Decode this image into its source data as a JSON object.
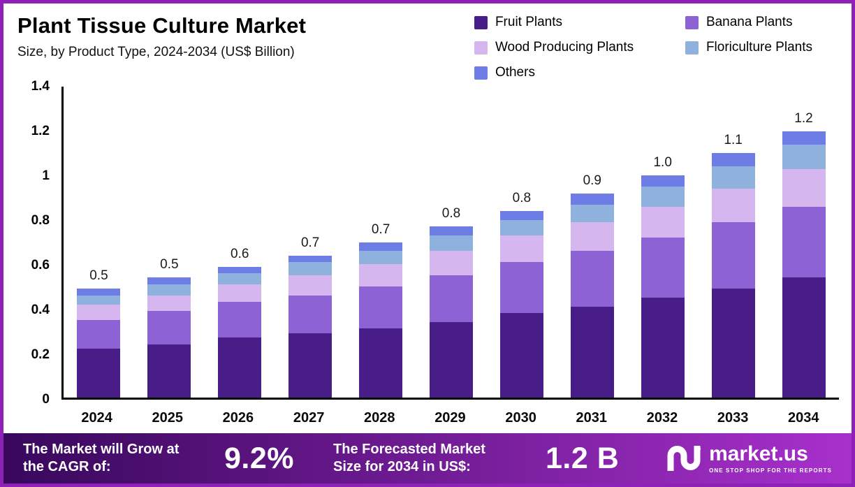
{
  "title": "Plant Tissue Culture Market",
  "subtitle": "Size, by Product Type, 2024-2034 (US$ Billion)",
  "colors": {
    "frame_border": "#8e22b8",
    "axis": "#000000",
    "footer_gradient_start": "#38085c",
    "footer_gradient_end": "#a830cc"
  },
  "chart_data": {
    "type": "bar",
    "stacked": true,
    "title": "Plant Tissue Culture Market",
    "subtitle": "Size, by Product Type, 2024-2034 (US$ Billion)",
    "xlabel": "",
    "ylabel": "",
    "grid": false,
    "legend_position": "top-right",
    "ylim": [
      0,
      1.4
    ],
    "y_ticks": [
      "1.4",
      "1.2",
      "1",
      "0.8",
      "0.6",
      "0.4",
      "0.2",
      "0"
    ],
    "categories": [
      "2024",
      "2025",
      "2026",
      "2027",
      "2028",
      "2029",
      "2030",
      "2031",
      "2032",
      "2033",
      "2034"
    ],
    "series": [
      {
        "name": "Fruit Plants",
        "color": "#481d87",
        "values": [
          0.22,
          0.24,
          0.27,
          0.29,
          0.31,
          0.34,
          0.38,
          0.41,
          0.45,
          0.49,
          0.54
        ]
      },
      {
        "name": "Banana Plants",
        "color": "#8c62d4",
        "values": [
          0.13,
          0.15,
          0.16,
          0.17,
          0.19,
          0.21,
          0.23,
          0.25,
          0.27,
          0.3,
          0.32
        ]
      },
      {
        "name": "Wood Producing Plants",
        "color": "#d6b6ee",
        "values": [
          0.07,
          0.07,
          0.08,
          0.09,
          0.1,
          0.11,
          0.12,
          0.13,
          0.14,
          0.15,
          0.17
        ]
      },
      {
        "name": "Floriculture Plants",
        "color": "#8eb1de",
        "values": [
          0.04,
          0.05,
          0.05,
          0.06,
          0.06,
          0.07,
          0.07,
          0.08,
          0.09,
          0.1,
          0.11
        ]
      },
      {
        "name": "Others",
        "color": "#6e7ce6",
        "values": [
          0.03,
          0.03,
          0.03,
          0.03,
          0.04,
          0.04,
          0.04,
          0.05,
          0.05,
          0.06,
          0.06
        ]
      }
    ],
    "totals_labels": [
      "0.5",
      "0.5",
      "0.6",
      "0.7",
      "0.7",
      "0.8",
      "0.8",
      "0.9",
      "1.0",
      "1.1",
      "1.2"
    ]
  },
  "footer": {
    "cagr_label": "The Market will Grow at the CAGR of:",
    "cagr_value": "9.2%",
    "forecast_label": "The Forecasted Market Size for 2034 in US$:",
    "forecast_value": "1.2 B",
    "brand": "market.us",
    "brand_tagline": "ONE STOP SHOP FOR THE REPORTS"
  }
}
